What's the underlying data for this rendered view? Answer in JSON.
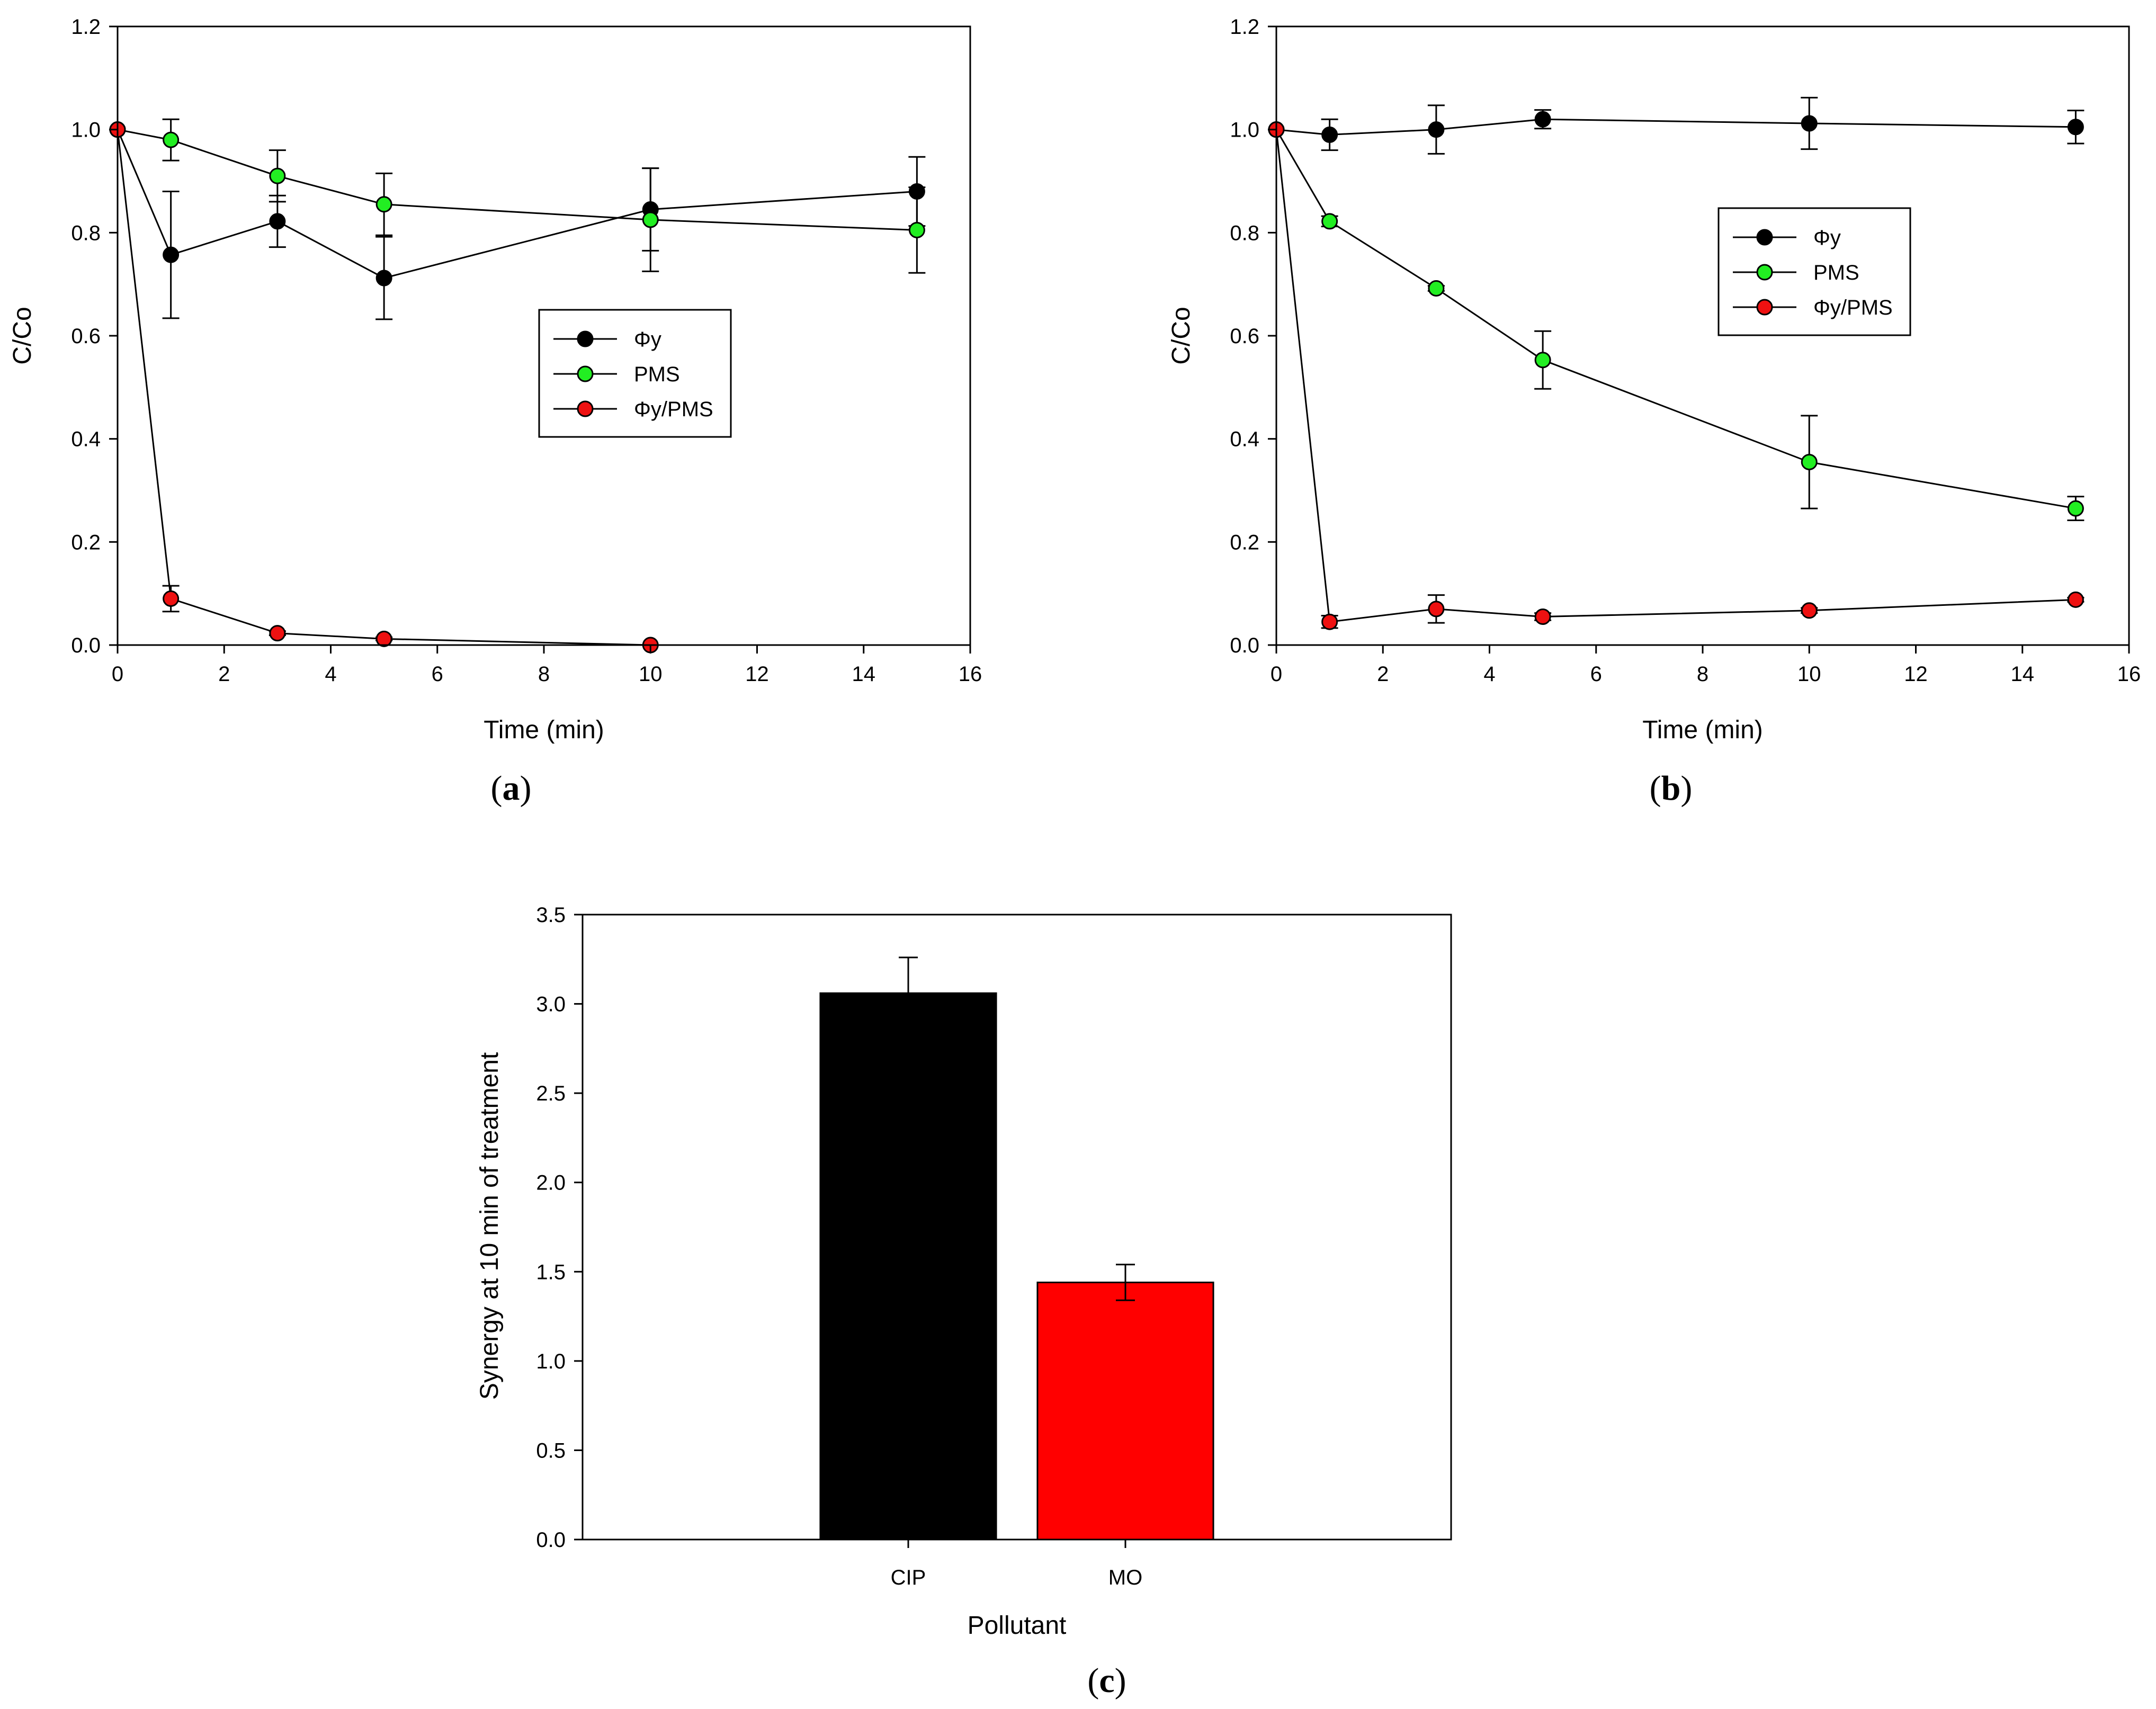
{
  "chart_data": [
    {
      "type": "line",
      "panel_label": {
        "open": "(",
        "letter": "a",
        "close": ")"
      },
      "xlabel": "Time (min)",
      "ylabel": "C/Co",
      "xlim": [
        0,
        16
      ],
      "ylim": [
        0,
        1.2
      ],
      "xticks": [
        0,
        2,
        4,
        6,
        8,
        10,
        12,
        14,
        16
      ],
      "yticks": [
        "0.0",
        "0.2",
        "0.4",
        "0.6",
        "0.8",
        "1.0",
        "1.2"
      ],
      "grid": false,
      "legend_position": "center-right",
      "series": [
        {
          "name": "Φy",
          "color": "#000000",
          "x": [
            0,
            1,
            3,
            5,
            10,
            15
          ],
          "y": [
            1.0,
            0.757,
            0.822,
            0.712,
            0.845,
            0.88
          ],
          "err": [
            0,
            0.123,
            0.05,
            0.08,
            0.08,
            0.067
          ]
        },
        {
          "name": "PMS",
          "color": "#22ee22",
          "x": [
            0,
            1,
            3,
            5,
            10,
            15
          ],
          "y": [
            1.0,
            0.98,
            0.91,
            0.855,
            0.825,
            0.805
          ],
          "err": [
            0,
            0.04,
            0.05,
            0.06,
            0.1,
            0.083
          ]
        },
        {
          "name": "Φy/PMS",
          "color": "#ee1111",
          "x": [
            0,
            1,
            3,
            5,
            10
          ],
          "y": [
            1.0,
            0.09,
            0.023,
            0.012,
            0.0
          ],
          "err": [
            0,
            0.025,
            0.004,
            0.003,
            0
          ]
        }
      ]
    },
    {
      "type": "line",
      "panel_label": {
        "open": "(",
        "letter": "b",
        "close": ")"
      },
      "xlabel": "Time (min)",
      "ylabel": "C/Co",
      "xlim": [
        0,
        16
      ],
      "ylim": [
        0,
        1.2
      ],
      "xticks": [
        0,
        2,
        4,
        6,
        8,
        10,
        12,
        14,
        16
      ],
      "yticks": [
        "0.0",
        "0.2",
        "0.4",
        "0.6",
        "0.8",
        "1.0",
        "1.2"
      ],
      "grid": false,
      "legend_position": "upper-right",
      "series": [
        {
          "name": "Φy",
          "color": "#000000",
          "x": [
            0,
            1,
            3,
            5,
            10,
            15
          ],
          "y": [
            1.0,
            0.99,
            1.0,
            1.02,
            1.012,
            1.005
          ],
          "err": [
            0,
            0.03,
            0.047,
            0.018,
            0.05,
            0.032
          ]
        },
        {
          "name": "PMS",
          "color": "#22ee22",
          "x": [
            0,
            1,
            3,
            5,
            10,
            15
          ],
          "y": [
            1.0,
            0.822,
            0.692,
            0.553,
            0.355,
            0.265
          ],
          "err": [
            0,
            0.01,
            0.005,
            0.056,
            0.09,
            0.023
          ]
        },
        {
          "name": "Φy/PMS",
          "color": "#ee1111",
          "x": [
            0,
            1,
            3,
            5,
            10,
            15
          ],
          "y": [
            1.0,
            0.045,
            0.07,
            0.055,
            0.067,
            0.088
          ],
          "err": [
            0,
            0.012,
            0.027,
            0.007,
            0.005,
            0.004
          ]
        }
      ]
    },
    {
      "type": "bar",
      "panel_label": {
        "open": "(",
        "letter": "c",
        "close": ")"
      },
      "xlabel": "Pollutant",
      "ylabel": "Synergy at 10 min of treatment",
      "ylim": [
        0,
        3.5
      ],
      "yticks": [
        "0.0",
        "0.5",
        "1.0",
        "1.5",
        "2.0",
        "2.5",
        "3.0",
        "3.5"
      ],
      "grid": false,
      "categories": [
        "CIP",
        "MO"
      ],
      "values": [
        3.06,
        1.44
      ],
      "errors": [
        0.2,
        0.1
      ],
      "colors": [
        "#000000",
        "#ff0000"
      ]
    }
  ]
}
